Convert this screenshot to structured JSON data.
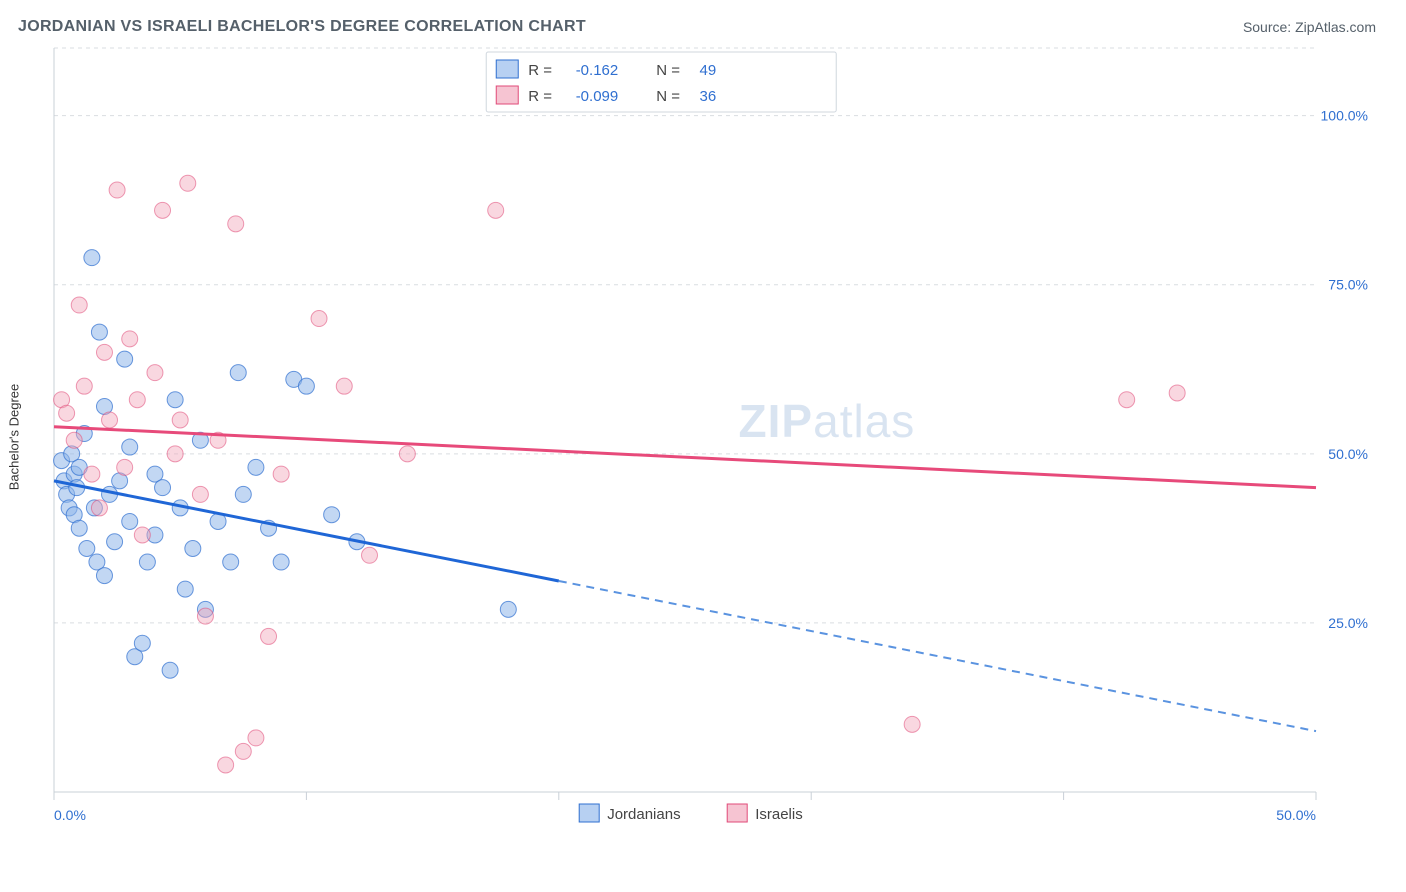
{
  "title": "JORDANIAN VS ISRAELI BACHELOR'S DEGREE CORRELATION CHART",
  "source": "Source: ZipAtlas.com",
  "ylabel": "Bachelor's Degree",
  "watermark_bold": "ZIP",
  "watermark_thin": "atlas",
  "chart": {
    "type": "scatter",
    "xlim": [
      0,
      50
    ],
    "ylim": [
      0,
      110
    ],
    "x_ticks": [
      0,
      10,
      20,
      30,
      40,
      50
    ],
    "x_tick_labels": [
      "0.0%",
      "",
      "",
      "",
      "",
      "50.0%"
    ],
    "y_ticks": [
      25,
      50,
      75,
      100
    ],
    "y_tick_labels": [
      "25.0%",
      "50.0%",
      "75.0%",
      "100.0%"
    ],
    "marker_radius": 8,
    "background_color": "#ffffff",
    "grid_color": "#d9dde1",
    "series": [
      {
        "name": "Jordanians",
        "color_fill": "#8fb7ea",
        "color_stroke": "#2f6fd0",
        "R": "-0.162",
        "N": "49",
        "trend": {
          "y_at_x0": 46,
          "y_at_x50": 9,
          "solid_until_x": 20
        },
        "points": [
          [
            0.3,
            49
          ],
          [
            0.4,
            46
          ],
          [
            0.5,
            44
          ],
          [
            0.6,
            42
          ],
          [
            0.7,
            50
          ],
          [
            0.8,
            47
          ],
          [
            0.8,
            41
          ],
          [
            0.9,
            45
          ],
          [
            1.0,
            48
          ],
          [
            1.0,
            39
          ],
          [
            1.2,
            53
          ],
          [
            1.3,
            36
          ],
          [
            1.5,
            79
          ],
          [
            1.6,
            42
          ],
          [
            1.7,
            34
          ],
          [
            1.8,
            68
          ],
          [
            2.0,
            57
          ],
          [
            2.0,
            32
          ],
          [
            2.2,
            44
          ],
          [
            2.4,
            37
          ],
          [
            2.6,
            46
          ],
          [
            2.8,
            64
          ],
          [
            3.0,
            51
          ],
          [
            3.0,
            40
          ],
          [
            3.2,
            20
          ],
          [
            3.5,
            22
          ],
          [
            3.7,
            34
          ],
          [
            4.0,
            38
          ],
          [
            4.0,
            47
          ],
          [
            4.3,
            45
          ],
          [
            4.6,
            18
          ],
          [
            4.8,
            58
          ],
          [
            5.0,
            42
          ],
          [
            5.2,
            30
          ],
          [
            5.5,
            36
          ],
          [
            5.8,
            52
          ],
          [
            6.0,
            27
          ],
          [
            6.5,
            40
          ],
          [
            7.0,
            34
          ],
          [
            7.3,
            62
          ],
          [
            7.5,
            44
          ],
          [
            8.0,
            48
          ],
          [
            8.5,
            39
          ],
          [
            9.0,
            34
          ],
          [
            9.5,
            61
          ],
          [
            10.0,
            60
          ],
          [
            11.0,
            41
          ],
          [
            12.0,
            37
          ],
          [
            18.0,
            27
          ]
        ]
      },
      {
        "name": "Israelis",
        "color_fill": "#f2a6bb",
        "color_stroke": "#e04a78",
        "R": "-0.099",
        "N": "36",
        "trend": {
          "y_at_x0": 54,
          "y_at_x50": 45,
          "solid_until_x": 50
        },
        "points": [
          [
            0.3,
            58
          ],
          [
            0.5,
            56
          ],
          [
            0.8,
            52
          ],
          [
            1.0,
            72
          ],
          [
            1.2,
            60
          ],
          [
            1.5,
            47
          ],
          [
            1.8,
            42
          ],
          [
            2.0,
            65
          ],
          [
            2.2,
            55
          ],
          [
            2.5,
            89
          ],
          [
            2.8,
            48
          ],
          [
            3.0,
            67
          ],
          [
            3.3,
            58
          ],
          [
            3.5,
            38
          ],
          [
            4.0,
            62
          ],
          [
            4.3,
            86
          ],
          [
            4.8,
            50
          ],
          [
            5.0,
            55
          ],
          [
            5.3,
            90
          ],
          [
            5.8,
            44
          ],
          [
            6.0,
            26
          ],
          [
            6.5,
            52
          ],
          [
            7.2,
            84
          ],
          [
            7.5,
            6
          ],
          [
            8.0,
            8
          ],
          [
            8.5,
            23
          ],
          [
            9.0,
            47
          ],
          [
            10.5,
            70
          ],
          [
            11.5,
            60
          ],
          [
            12.5,
            35
          ],
          [
            14.0,
            50
          ],
          [
            17.5,
            86
          ],
          [
            34.0,
            10
          ],
          [
            42.5,
            58
          ],
          [
            44.5,
            59
          ],
          [
            6.8,
            4
          ]
        ]
      }
    ],
    "legend_top": {
      "R_label": "R =",
      "N_label": "N ="
    },
    "legend_bottom": [
      {
        "label": "Jordanians",
        "swatch_class": "legend-sw-a"
      },
      {
        "label": "Israelis",
        "swatch_class": "legend-sw-b"
      }
    ]
  }
}
